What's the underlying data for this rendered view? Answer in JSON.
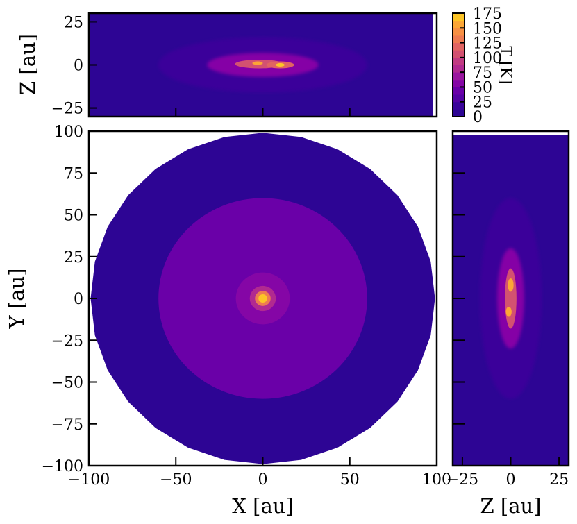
{
  "chart_data": {
    "type": "heatmap",
    "description_units": "au",
    "colorbar": {
      "label": "T [K]",
      "ticks": [
        0,
        25,
        50,
        75,
        100,
        125,
        150,
        175
      ],
      "range": [
        0,
        175
      ],
      "levels": [
        0,
        12.5,
        25,
        37.5,
        50,
        62.5,
        75,
        87.5,
        100,
        112.5,
        125,
        137.5,
        150,
        162.5,
        175
      ],
      "colors": [
        "#2d0594",
        "#3a049a",
        "#5402a3",
        "#6a00a8",
        "#8506a6",
        "#9a169f",
        "#b12a90",
        "#c13b82",
        "#d35171",
        "#e16462",
        "#ee7b51",
        "#f79044",
        "#fca636",
        "#fdc527",
        "#f0f921"
      ]
    },
    "panels": [
      {
        "id": "xy",
        "xlabel": "X [au]",
        "ylabel": "Y [au]",
        "xlim": [
          -100,
          100
        ],
        "ylim": [
          -100,
          100
        ],
        "xticks": [
          -100,
          -50,
          0,
          50,
          100
        ],
        "yticks": [
          -100,
          -75,
          -50,
          -25,
          0,
          25,
          50,
          75,
          100
        ],
        "rings": [
          {
            "radius": 99,
            "temperature": 5
          },
          {
            "radius": 60,
            "temperature": 40
          },
          {
            "radius": 15.5,
            "temperature": 60
          },
          {
            "radius": 7.5,
            "temperature": 80
          },
          {
            "radius": 4.5,
            "temperature": 130
          },
          {
            "radius": 2.5,
            "temperature": 170
          }
        ]
      },
      {
        "id": "xz",
        "ylabel": "Z [au]",
        "xlim": [
          -100,
          100
        ],
        "ylim": [
          -30,
          30
        ],
        "yticks": [
          -25,
          0,
          25
        ],
        "xticks": [
          -50,
          0,
          50
        ],
        "background_temperature": 5,
        "features": [
          {
            "center": [
              0,
              0
            ],
            "half_width": [
              60,
              16
            ],
            "temperature": 20
          },
          {
            "center": [
              0,
              0
            ],
            "half_width": [
              32,
              7
            ],
            "temperature": 55
          },
          {
            "center": [
              -2,
              0.5
            ],
            "half_width": [
              14,
              2.5
            ],
            "temperature": 110
          },
          {
            "center": [
              10,
              0
            ],
            "half_width": [
              8,
              2
            ],
            "temperature": 120
          },
          {
            "center": [
              -3,
              1
            ],
            "half_width": [
              3,
              1
            ],
            "temperature": 160
          },
          {
            "center": [
              10,
              0
            ],
            "half_width": [
              2.5,
              1
            ],
            "temperature": 170
          }
        ]
      },
      {
        "id": "zy",
        "xlabel": "Z [au]",
        "xlim": [
          -30,
          30
        ],
        "ylim": [
          -100,
          100
        ],
        "xticks": [
          -25,
          0,
          25
        ],
        "yticks": [
          -75,
          -50,
          -25,
          0,
          25,
          50,
          75
        ],
        "background_temperature": 5,
        "features": [
          {
            "center": [
              0,
              0
            ],
            "half_width": [
              16,
              60
            ],
            "temperature": 20
          },
          {
            "center": [
              0,
              0
            ],
            "half_width": [
              7,
              30
            ],
            "temperature": 55
          },
          {
            "center": [
              0,
              0
            ],
            "half_width": [
              3,
              18
            ],
            "temperature": 110
          },
          {
            "center": [
              0,
              8
            ],
            "half_width": [
              1.5,
              4
            ],
            "temperature": 160
          },
          {
            "center": [
              -1,
              -8
            ],
            "half_width": [
              1.5,
              3
            ],
            "temperature": 160
          }
        ]
      }
    ]
  }
}
